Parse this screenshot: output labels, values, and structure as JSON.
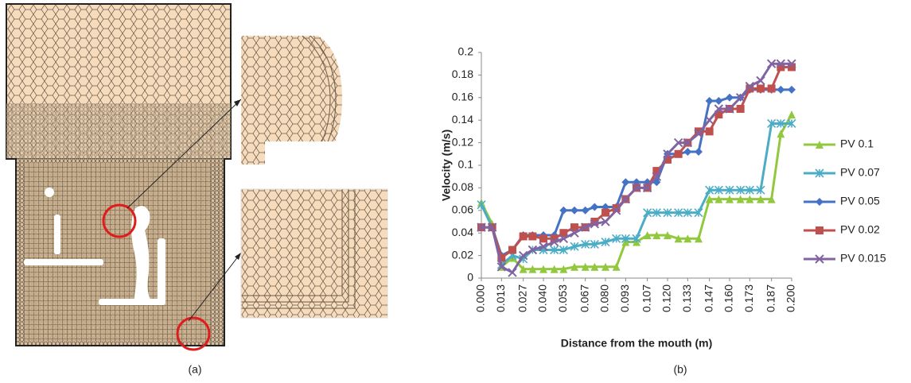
{
  "panel_labels": [
    "(a)",
    "(b)"
  ],
  "chart_data": {
    "type": "line",
    "xlabel": "Distance from the mouth (m)",
    "ylabel": "Velocity (m/s)",
    "x": [
      0,
      0.007,
      0.013,
      0.02,
      0.027,
      0.033,
      0.04,
      0.047,
      0.053,
      0.06,
      0.067,
      0.073,
      0.08,
      0.087,
      0.093,
      0.1,
      0.107,
      0.113,
      0.12,
      0.127,
      0.133,
      0.14,
      0.147,
      0.153,
      0.16,
      0.167,
      0.173,
      0.18,
      0.187,
      0.193,
      0.2
    ],
    "xlim": [
      0,
      0.2
    ],
    "xticks": [
      {
        "value": 0,
        "label": "0.000"
      },
      {
        "value": 0.013,
        "label": "0.013"
      },
      {
        "value": 0.027,
        "label": "0.027"
      },
      {
        "value": 0.04,
        "label": "0.040"
      },
      {
        "value": 0.053,
        "label": "0.053"
      },
      {
        "value": 0.067,
        "label": "0.067"
      },
      {
        "value": 0.08,
        "label": "0.080"
      },
      {
        "value": 0.093,
        "label": "0.093"
      },
      {
        "value": 0.107,
        "label": "0.107"
      },
      {
        "value": 0.12,
        "label": "0.120"
      },
      {
        "value": 0.133,
        "label": "0.133"
      },
      {
        "value": 0.147,
        "label": "0.147"
      },
      {
        "value": 0.16,
        "label": "0.160"
      },
      {
        "value": 0.173,
        "label": "0.173"
      },
      {
        "value": 0.187,
        "label": "0.187"
      },
      {
        "value": 0.2,
        "label": "0.200"
      }
    ],
    "ylim": [
      0,
      0.2
    ],
    "yticks": [
      0,
      0.02,
      0.04,
      0.06,
      0.08,
      0.1,
      0.12,
      0.14,
      0.16,
      0.18,
      0.2
    ],
    "grid": false,
    "legend": "right",
    "series": [
      {
        "name": "PV 0.1",
        "color": "#92c83e",
        "marker": "triangle",
        "values": [
          0.067,
          0.048,
          0.01,
          0.018,
          0.008,
          0.008,
          0.008,
          0.008,
          0.008,
          0.01,
          0.01,
          0.01,
          0.01,
          0.01,
          0.032,
          0.032,
          0.038,
          0.038,
          0.038,
          0.035,
          0.035,
          0.035,
          0.07,
          0.07,
          0.07,
          0.07,
          0.07,
          0.07,
          0.07,
          0.128,
          0.145
        ]
      },
      {
        "name": "PV 0.07",
        "color": "#4bacc6",
        "marker": "star",
        "values": [
          0.065,
          0.045,
          0.012,
          0.02,
          0.017,
          0.025,
          0.025,
          0.025,
          0.025,
          0.028,
          0.03,
          0.03,
          0.032,
          0.035,
          0.035,
          0.035,
          0.058,
          0.058,
          0.058,
          0.058,
          0.058,
          0.058,
          0.078,
          0.078,
          0.078,
          0.078,
          0.078,
          0.078,
          0.137,
          0.137,
          0.137
        ]
      },
      {
        "name": "PV 0.05",
        "color": "#4472c4",
        "marker": "diamond",
        "values": [
          0.045,
          0.045,
          0.02,
          0.025,
          0.038,
          0.038,
          0.038,
          0.038,
          0.06,
          0.06,
          0.06,
          0.063,
          0.063,
          0.063,
          0.085,
          0.085,
          0.085,
          0.085,
          0.11,
          0.11,
          0.112,
          0.112,
          0.157,
          0.157,
          0.16,
          0.16,
          0.167,
          0.167,
          0.167,
          0.167,
          0.167
        ]
      },
      {
        "name": "PV 0.02",
        "color": "#c0504d",
        "marker": "square",
        "values": [
          0.045,
          0.045,
          0.018,
          0.025,
          0.037,
          0.037,
          0.035,
          0.035,
          0.04,
          0.045,
          0.045,
          0.05,
          0.058,
          0.062,
          0.07,
          0.08,
          0.08,
          0.095,
          0.105,
          0.11,
          0.12,
          0.13,
          0.13,
          0.145,
          0.15,
          0.15,
          0.168,
          0.168,
          0.168,
          0.187,
          0.187
        ]
      },
      {
        "name": "PV 0.015",
        "color": "#8064a2",
        "marker": "x",
        "values": [
          0.045,
          0.045,
          0.01,
          0.005,
          0.02,
          0.025,
          0.028,
          0.032,
          0.035,
          0.04,
          0.045,
          0.048,
          0.05,
          0.06,
          0.07,
          0.08,
          0.08,
          0.09,
          0.11,
          0.12,
          0.12,
          0.128,
          0.14,
          0.15,
          0.15,
          0.16,
          0.17,
          0.175,
          0.19,
          0.19,
          0.19
        ]
      }
    ]
  }
}
